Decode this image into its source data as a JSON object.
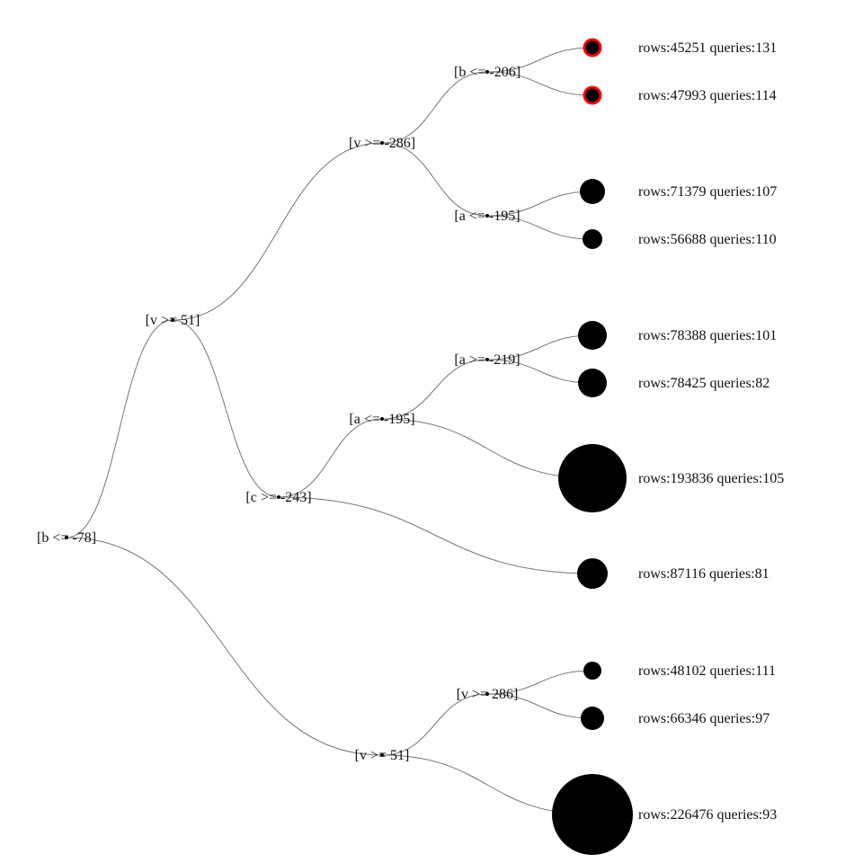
{
  "tree": {
    "label": "[b <= -78]",
    "children": [
      {
        "label": "[v >= 51]",
        "children": [
          {
            "label": "[v >= -286]",
            "children": [
              {
                "label": "[b <= -206]",
                "children": [
                  {
                    "leaf": "rows:45251 queries:131",
                    "rows": 45251,
                    "queries": 131,
                    "highlight": true
                  },
                  {
                    "leaf": "rows:47993 queries:114",
                    "rows": 47993,
                    "queries": 114,
                    "highlight": true
                  }
                ]
              },
              {
                "label": "[a <= -195]",
                "children": [
                  {
                    "leaf": "rows:71379 queries:107",
                    "rows": 71379,
                    "queries": 107
                  },
                  {
                    "leaf": "rows:56688 queries:110",
                    "rows": 56688,
                    "queries": 110
                  }
                ]
              }
            ]
          },
          {
            "label": "[c >= -243]",
            "children": [
              {
                "label": "[a <= -195]",
                "children": [
                  {
                    "label": "[a >= -219]",
                    "children": [
                      {
                        "leaf": "rows:78388 queries:101",
                        "rows": 78388,
                        "queries": 101
                      },
                      {
                        "leaf": "rows:78425 queries:82",
                        "rows": 78425,
                        "queries": 82
                      }
                    ]
                  },
                  {
                    "leaf": "rows:193836 queries:105",
                    "rows": 193836,
                    "queries": 105
                  }
                ]
              },
              {
                "leaf": "rows:87116 queries:81",
                "rows": 87116,
                "queries": 81
              }
            ]
          }
        ]
      },
      {
        "label": "[v >= 51]",
        "children": [
          {
            "label": "[v >= 286]",
            "children": [
              {
                "leaf": "rows:48102 queries:111",
                "rows": 48102,
                "queries": 111
              },
              {
                "leaf": "rows:66346 queries:97",
                "rows": 66346,
                "queries": 97
              }
            ]
          },
          {
            "leaf": "rows:226476 queries:93",
            "rows": 226476,
            "queries": 93
          }
        ]
      }
    ]
  },
  "colors": {
    "link": "#777777",
    "leaf_fill": "#000000",
    "highlight_stroke": "#ff0000"
  }
}
